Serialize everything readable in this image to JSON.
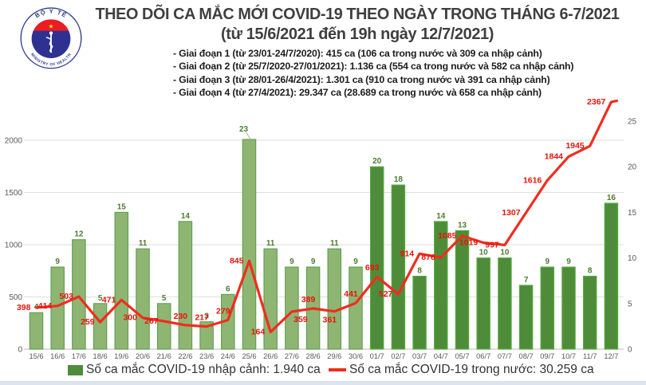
{
  "header": {
    "title": "THEO DÕI CA MẮC MỚI COVID-19 THEO NGÀY TRONG THÁNG 6-7/2021",
    "subtitle": "(từ 15/6/2021 đến 19h ngày 12/7/2021)",
    "phases": [
      "- Giai đoạn 1 (từ 23/01-24/7/2020): 415 ca (106 ca trong nước và 309 ca nhập cảnh)",
      "- Giai đoạn 2 (từ 25/7/2020-27/01/2021): 1.136 ca (554 ca trong nước và 582 ca nhập cảnh)",
      "- Giai đoạn 3 (từ 28/01-26/4/2021): 1.301 ca (910 ca trong nước và 391 ca nhập cảnh)",
      "- Giai đoạn 4 (từ 27/4/2021): 29.347 ca (28.689 ca trong nước và 658 ca nhập cảnh)"
    ],
    "logo": {
      "top_text": "BỘ Y TẾ",
      "bottom_text": "MINISTRY OF HEALTH"
    }
  },
  "chart_data": {
    "type": "bar+line",
    "categories": [
      "15/6",
      "16/6",
      "17/6",
      "18/6",
      "19/6",
      "20/6",
      "21/6",
      "22/6",
      "23/6",
      "24/6",
      "25/6",
      "26/6",
      "27/6",
      "28/6",
      "29/6",
      "30/6",
      "01/7",
      "02/7",
      "03/7",
      "04/7",
      "05/7",
      "06/7",
      "07/7",
      "08/7",
      "09/7",
      "10/7",
      "11/7",
      "12/7"
    ],
    "series": [
      {
        "name": "Số ca mắc COVID-19 nhập cảnh",
        "type": "bar",
        "axis": "right",
        "values": [
          4,
          9,
          12,
          5,
          15,
          11,
          5,
          14,
          3,
          6,
          23,
          11,
          9,
          9,
          11,
          9,
          20,
          18,
          8,
          14,
          13,
          10,
          10,
          7,
          9,
          9,
          8,
          16
        ]
      },
      {
        "name": "Số ca mắc COVID-19 trong nước",
        "type": "line",
        "axis": "left",
        "values": [
          398,
          414,
          503,
          259,
          471,
          300,
          267,
          230,
          217,
          279,
          845,
          164,
          359,
          389,
          361,
          441,
          693,
          527,
          914,
          876,
          1085,
          1019,
          997,
          1307,
          1616,
          1844,
          1945,
          2367
        ]
      }
    ],
    "left_axis": {
      "ticks": [
        0,
        500,
        1000,
        1500,
        2000
      ],
      "max": 2500
    },
    "right_axis": {
      "ticks": [
        0,
        5,
        10,
        15,
        20,
        25
      ],
      "max": 25
    },
    "bar_split_index": 16,
    "grid": "on",
    "legend_position": "bottom",
    "colors": {
      "bar_june_fill": "#8FB573",
      "bar_june_border": "#5B9E4D",
      "bar_july_fill": "#4E8C39",
      "bar_july_border": "#55AE41",
      "bar_label": "#4E7B2F",
      "line": "#F02D1E",
      "line_label": "#E8140A",
      "axis_text": "#595959",
      "grid_line": "#DEDEDE",
      "base_line": "#C6C6C6"
    }
  },
  "legend": {
    "bar_label": "Số ca mắc COVID-19 nhập cảnh: 1.940 ca",
    "line_label": "Số ca mắc COVID-19 trong nước: 30.259 ca"
  }
}
